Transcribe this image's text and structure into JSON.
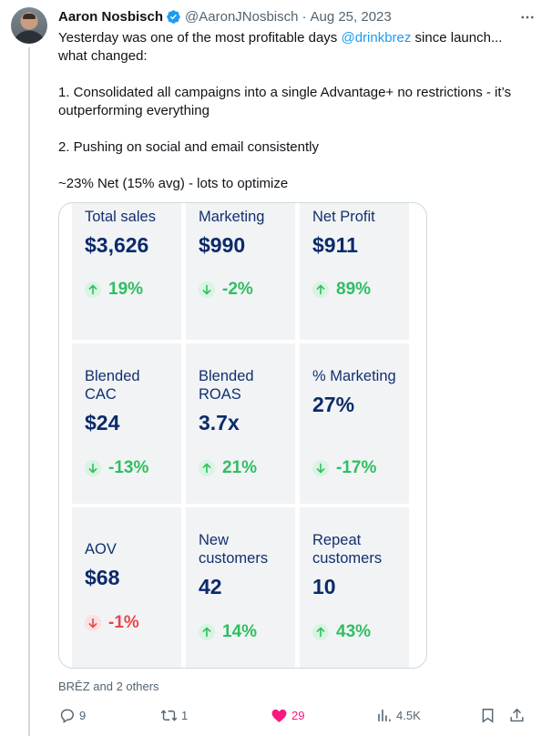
{
  "post": {
    "author_name": "Aaron Nosbisch",
    "handle": "@AaronJNosbisch",
    "separator": "·",
    "date": "Aug 25, 2023",
    "text_before_mention": "Yesterday was one of the most profitable days ",
    "mention": "@drinkbrez",
    "text_after_mention": " since launch...\nwhat changed:\n\n1. Consolidated all campaigns into a single Advantage+ no restrictions - it’s outperforming everything\n\n2. Pushing on social and email consistently\n\n~23% Net (15% avg) - lots to optimize",
    "likers": "BRĒZ and 2 others"
  },
  "metrics": [
    {
      "label": "Total sales",
      "value": "$3,626",
      "change": "19%",
      "direction": "up"
    },
    {
      "label": "Marketing",
      "value": "$990",
      "change": "-2%",
      "direction": "down"
    },
    {
      "label": "Net Profit",
      "value": "$911",
      "change": "89%",
      "direction": "up"
    },
    {
      "label": "Blended CAC",
      "value": "$24",
      "change": "-13%",
      "direction": "down"
    },
    {
      "label": "Blended ROAS",
      "value": "3.7x",
      "change": "21%",
      "direction": "up"
    },
    {
      "label": "% Marketing",
      "value": "27%",
      "change": "-17%",
      "direction": "down"
    },
    {
      "label": "AOV",
      "value": "$68",
      "change": "-1%",
      "direction": "neg"
    },
    {
      "label": "New customers",
      "value": "42",
      "change": "14%",
      "direction": "up"
    },
    {
      "label": "Repeat customers",
      "value": "10",
      "change": "43%",
      "direction": "up"
    }
  ],
  "actions": {
    "replies": "9",
    "reposts": "1",
    "likes": "29",
    "views": "4.5K"
  },
  "colors": {
    "link": "#1d9bf0",
    "verified": "#1d9bf0",
    "positive": "#2fbf60",
    "negative": "#e5484d",
    "like": "#f91880"
  }
}
